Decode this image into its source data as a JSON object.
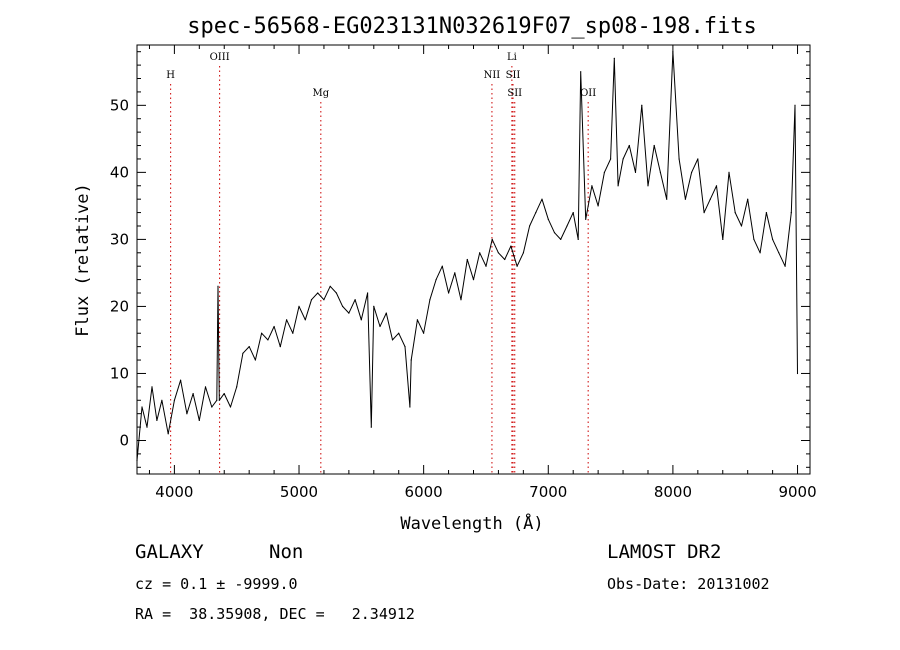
{
  "chart_data": {
    "type": "line",
    "title": "spec-56568-EG023131N032619F07_sp08-198.fits",
    "xlabel": "Wavelength (Å)",
    "ylabel": "Flux (relative)",
    "xlim": [
      3700,
      9100
    ],
    "ylim": [
      -5,
      59
    ],
    "xticks": [
      4000,
      5000,
      6000,
      7000,
      8000,
      9000
    ],
    "yticks": [
      0,
      10,
      20,
      30,
      40,
      50
    ],
    "grid": false,
    "line_color": "#000000",
    "marker_color": "#cc0000",
    "series": [
      {
        "x": [
          3700,
          3740,
          3780,
          3820,
          3860,
          3900,
          3950,
          4000,
          4050,
          4100,
          4150,
          4200,
          4250,
          4300,
          4340,
          4350,
          4360,
          4400,
          4450,
          4500,
          4550,
          4600,
          4650,
          4700,
          4750,
          4800,
          4850,
          4900,
          4950,
          5000,
          5050,
          5100,
          5150,
          5200,
          5250,
          5300,
          5350,
          5400,
          5450,
          5500,
          5550,
          5580,
          5600,
          5650,
          5700,
          5750,
          5800,
          5850,
          5890,
          5900,
          5950,
          6000,
          6050,
          6100,
          6150,
          6200,
          6250,
          6300,
          6350,
          6400,
          6450,
          6500,
          6550,
          6600,
          6650,
          6700,
          6750,
          6800,
          6850,
          6900,
          6950,
          7000,
          7050,
          7100,
          7150,
          7200,
          7240,
          7260,
          7300,
          7350,
          7400,
          7450,
          7500,
          7530,
          7560,
          7600,
          7650,
          7700,
          7750,
          7800,
          7850,
          7900,
          7950,
          8000,
          8050,
          8100,
          8150,
          8200,
          8250,
          8300,
          8350,
          8400,
          8450,
          8500,
          8550,
          8600,
          8650,
          8700,
          8750,
          8800,
          8850,
          8900,
          8950,
          8980,
          9000
        ],
        "y": [
          -3,
          5,
          2,
          8,
          3,
          6,
          1,
          6,
          9,
          4,
          7,
          3,
          8,
          5,
          6,
          23,
          6,
          7,
          5,
          8,
          13,
          14,
          12,
          16,
          15,
          17,
          14,
          18,
          16,
          20,
          18,
          21,
          22,
          21,
          23,
          22,
          20,
          19,
          21,
          18,
          22,
          2,
          20,
          17,
          19,
          15,
          16,
          14,
          5,
          12,
          18,
          16,
          21,
          24,
          26,
          22,
          25,
          21,
          27,
          24,
          28,
          26,
          30,
          28,
          27,
          29,
          26,
          28,
          32,
          34,
          36,
          33,
          31,
          30,
          32,
          34,
          30,
          55,
          33,
          38,
          35,
          40,
          42,
          57,
          38,
          42,
          44,
          40,
          50,
          38,
          44,
          40,
          36,
          58,
          42,
          36,
          40,
          42,
          34,
          36,
          38,
          30,
          40,
          34,
          32,
          36,
          30,
          28,
          34,
          30,
          28,
          26,
          34,
          50,
          10
        ]
      }
    ],
    "line_markers": [
      {
        "label": "H",
        "x": 3970,
        "row": 1,
        "color": "#cc0000",
        "style": "dotted"
      },
      {
        "label": "OIII",
        "x": 4363,
        "row": 0,
        "color": "#cc0000",
        "style": "dotted"
      },
      {
        "label": "Mg",
        "x": 5175,
        "row": 2,
        "color": "#cc0000",
        "style": "dotted"
      },
      {
        "label": "NII",
        "x": 6548,
        "row": 1,
        "color": "#cc0000",
        "style": "dotted"
      },
      {
        "label": "Li",
        "x": 6708,
        "row": 0,
        "color": "#cc0000",
        "style": "dotted"
      },
      {
        "label": "SII",
        "x": 6717,
        "row": 1,
        "color": "#cc0000",
        "style": "dotted"
      },
      {
        "label": "SII",
        "x": 6731,
        "row": 2,
        "color": "#cc0000",
        "style": "dotted"
      },
      {
        "label": "OII",
        "x": 7320,
        "row": 2,
        "color": "#cc0000",
        "style": "dotted"
      }
    ]
  },
  "footer": {
    "object_type": "GALAXY",
    "subclass": "Non",
    "survey": "LAMOST DR2",
    "cz_line": "cz = 0.1 ± -9999.0",
    "obs_date": "Obs-Date: 20131002",
    "coords": "RA =  38.35908, DEC =   2.34912"
  }
}
